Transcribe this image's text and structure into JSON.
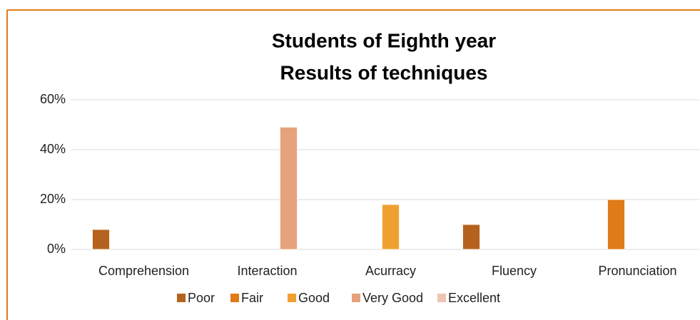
{
  "chart_data": {
    "type": "bar",
    "title": [
      "Students of Eighth year",
      "Results of techniques"
    ],
    "categories": [
      "Comprehension",
      "Interaction",
      "Acurracy",
      "Fluency",
      "Pronunciation"
    ],
    "series": [
      {
        "name": "Poor",
        "color": "#b5621e",
        "values": [
          8,
          0,
          0,
          10,
          0
        ]
      },
      {
        "name": "Fair",
        "color": "#e07b1a",
        "values": [
          0,
          0,
          0,
          0,
          20
        ]
      },
      {
        "name": "Good",
        "color": "#f0a030",
        "values": [
          0,
          0,
          18,
          0,
          0
        ]
      },
      {
        "name": "Very Good",
        "color": "#e6a27c",
        "values": [
          0,
          49,
          0,
          0,
          0
        ]
      },
      {
        "name": "Excellent",
        "color": "#efc4b4",
        "values": [
          0,
          0,
          0,
          0,
          0
        ]
      }
    ],
    "ylim": [
      0,
      60
    ],
    "yticks": [
      {
        "value": 0,
        "label": "0%"
      },
      {
        "value": 20,
        "label": "20%"
      },
      {
        "value": 40,
        "label": "40%"
      },
      {
        "value": 60,
        "label": "60%"
      }
    ],
    "grid": true
  }
}
